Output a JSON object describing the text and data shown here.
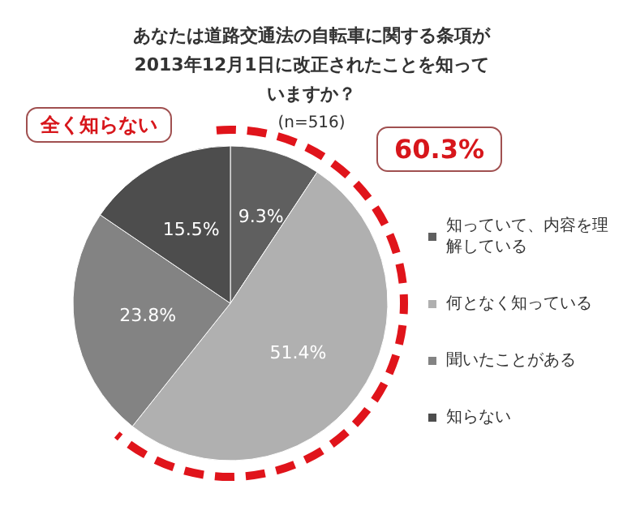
{
  "chart_data": {
    "type": "pie",
    "title": "あなたは道路交通法の自転車に関する条項が2013年12月1日に改正されたことを知っていますか？",
    "subtitle": "(n=516)",
    "categories": [
      "知っていて、内容を理解している",
      "何となく知っている",
      "聞いたことがある",
      "知らない"
    ],
    "values": [
      9.3,
      51.4,
      23.8,
      15.5
    ],
    "colors": [
      "#5f5f5f",
      "#b0b0b0",
      "#838383",
      "#4d4d4d"
    ],
    "value_labels": [
      "9.3%",
      "51.4%",
      "23.8%",
      "15.5%"
    ],
    "legend": "right",
    "annotations": [
      "60.3%",
      "全く知らない"
    ]
  }
}
